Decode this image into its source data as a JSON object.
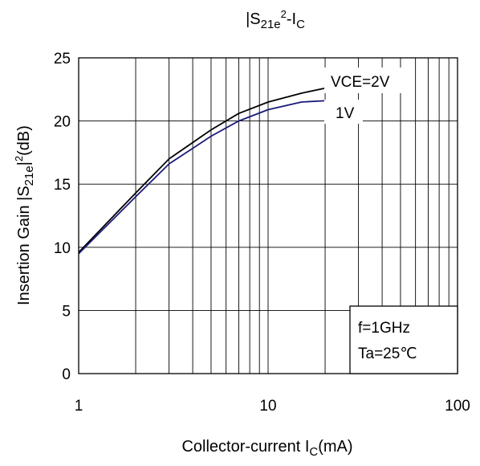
{
  "chart_data": {
    "type": "line",
    "title": {
      "main": "|S",
      "sub": "21e",
      "sup": "2",
      "suffix": "-I",
      "sub2": "C"
    },
    "ylabel": {
      "main": "Insertion Gain |S",
      "sub": "21e",
      "mid": "|",
      "sup": "2",
      "suffix": "(dB)"
    },
    "xlabel": {
      "main": "Collector-current I",
      "sub": "C",
      "suffix": "(mA)"
    },
    "x_scale": "log",
    "xlim": [
      1,
      100
    ],
    "ylim": [
      0,
      25
    ],
    "x_ticks": [
      1,
      10,
      100
    ],
    "x_tick_labels": [
      "1",
      "10",
      "100"
    ],
    "y_ticks": [
      0,
      5,
      10,
      15,
      20,
      25
    ],
    "y_tick_labels": [
      "0",
      "5",
      "10",
      "15",
      "20",
      "25"
    ],
    "grid": true,
    "series": [
      {
        "name": "VCE=2V",
        "color": "#000000",
        "x": [
          1,
          2,
          3,
          5,
          7,
          10,
          15,
          20
        ],
        "y": [
          9.6,
          14.3,
          17.0,
          19.3,
          20.6,
          21.5,
          22.2,
          22.6
        ]
      },
      {
        "name": "1V",
        "color": "#1a1a7a",
        "x": [
          1,
          2,
          3,
          5,
          7,
          10,
          15,
          20
        ],
        "y": [
          9.5,
          14.0,
          16.6,
          18.8,
          20.0,
          20.9,
          21.5,
          21.6
        ]
      }
    ],
    "annotations": [
      {
        "line1": "f=1GHz",
        "line2": "Ta=25℃"
      }
    ]
  }
}
